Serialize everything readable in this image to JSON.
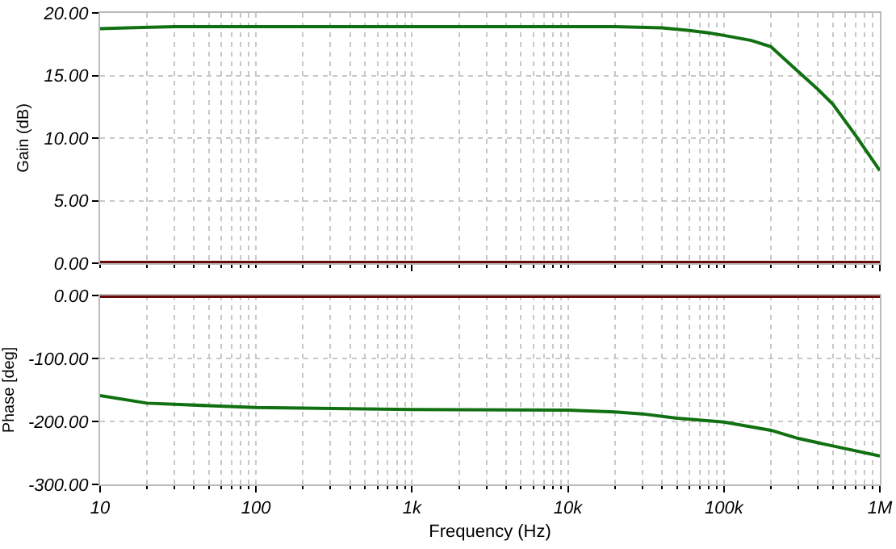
{
  "chart_data": [
    {
      "type": "line",
      "ylabel": "Gain (dB)",
      "log": "x",
      "grid": true,
      "tick_labels": "y",
      "line_style": "solid",
      "xlim": [
        10,
        1000000
      ],
      "xticks": [
        {
          "value": 10,
          "label": null
        },
        {
          "value": 100,
          "label": null
        },
        {
          "value": 1000,
          "label": null
        },
        {
          "value": 10000,
          "label": null
        },
        {
          "value": 100000,
          "label": null
        },
        {
          "value": 1000000,
          "label": null
        }
      ],
      "ylim": [
        0,
        20
      ],
      "yticks": [
        {
          "value": 0,
          "label": "0.00"
        },
        {
          "value": 5,
          "label": "5.00"
        },
        {
          "value": 10,
          "label": "10.00"
        },
        {
          "value": 15,
          "label": "15.00"
        },
        {
          "value": 20,
          "label": "20.00"
        }
      ],
      "series": [
        {
          "color": "#117011",
          "x": [
            10,
            15,
            30,
            100,
            1000,
            10000,
            20000,
            40000,
            60000,
            80000,
            100000,
            150000,
            200000,
            300000,
            400000,
            500000,
            700000,
            1000000
          ],
          "values": [
            18.75,
            18.8,
            18.9,
            18.9,
            18.9,
            18.9,
            18.9,
            18.8,
            18.6,
            18.4,
            18.2,
            17.8,
            17.3,
            15.3,
            13.9,
            12.7,
            10.2,
            7.4
          ]
        }
      ],
      "ref_lines": [
        {
          "axis": "y",
          "value": 0,
          "color": "#6b0a0a"
        }
      ]
    },
    {
      "type": "line",
      "xlabel": "Frequency (Hz)",
      "ylabel": "Phase [deg]",
      "log": "x",
      "grid": true,
      "line_style": "solid",
      "xlim": [
        10,
        1000000
      ],
      "xticks": [
        {
          "value": 10,
          "label": "10"
        },
        {
          "value": 100,
          "label": "100"
        },
        {
          "value": 1000,
          "label": "1k"
        },
        {
          "value": 10000,
          "label": "10k"
        },
        {
          "value": 100000,
          "label": "100k"
        },
        {
          "value": 1000000,
          "label": "1M"
        }
      ],
      "ylim": [
        -300,
        0
      ],
      "yticks": [
        {
          "value": -300,
          "label": "-300.00"
        },
        {
          "value": -200,
          "label": "-200.00"
        },
        {
          "value": -100,
          "label": "-100.00"
        },
        {
          "value": 0,
          "label": "0.00"
        }
      ],
      "series": [
        {
          "color": "#117011",
          "x": [
            10,
            20,
            50,
            100,
            1000,
            10000,
            20000,
            30000,
            50000,
            100000,
            200000,
            300000,
            500000,
            1000000
          ],
          "values": [
            -159,
            -171,
            -175,
            -178,
            -181,
            -182,
            -185,
            -188,
            -195,
            -201,
            -214,
            -227,
            -239,
            -255
          ]
        }
      ],
      "ref_lines": [
        {
          "axis": "y",
          "value": 0,
          "color": "#6b0a0a"
        }
      ]
    }
  ]
}
